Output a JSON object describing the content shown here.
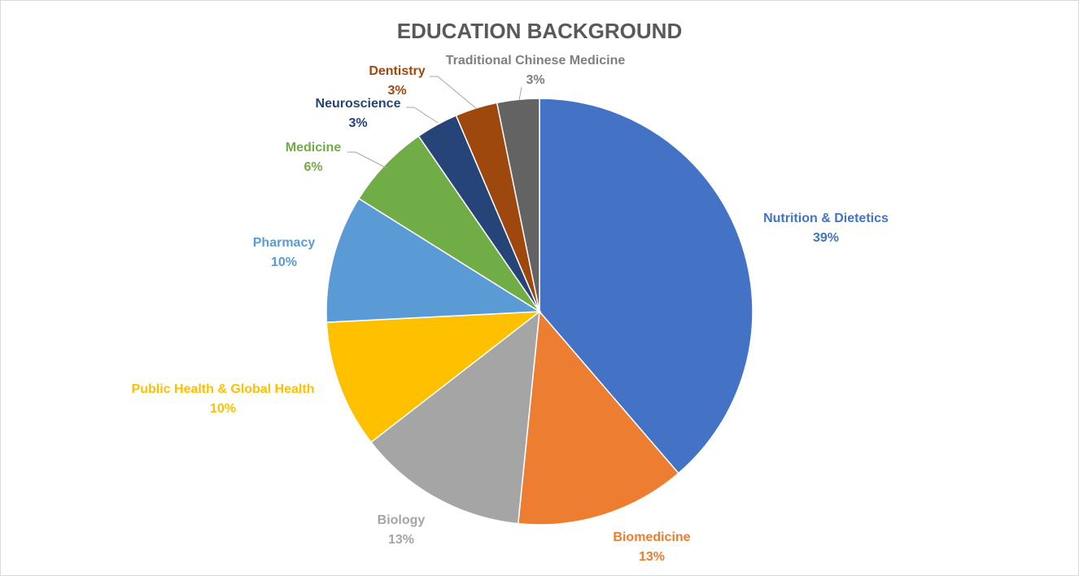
{
  "chart_data": {
    "type": "pie",
    "title": "EDUCATION BACKGROUND",
    "slices": [
      {
        "label": "Nutrition & Dietetics",
        "percent_label": "39%",
        "value": 38.7,
        "color": "#4472C4",
        "label_color": "#4472C4"
      },
      {
        "label": "Biomedicine",
        "percent_label": "13%",
        "value": 12.9,
        "color": "#ED7D31",
        "label_color": "#ED7D31"
      },
      {
        "label": "Biology",
        "percent_label": "13%",
        "value": 12.9,
        "color": "#A5A5A5",
        "label_color": "#A5A5A5"
      },
      {
        "label": "Public Health & Global Health",
        "percent_label": "10%",
        "value": 9.7,
        "color": "#FFC000",
        "label_color": "#FFC000"
      },
      {
        "label": "Pharmacy",
        "percent_label": "10%",
        "value": 9.7,
        "color": "#5B9BD5",
        "label_color": "#5B9BD5"
      },
      {
        "label": "Medicine",
        "percent_label": "6%",
        "value": 6.5,
        "color": "#70AD47",
        "label_color": "#70AD47"
      },
      {
        "label": "Neuroscience",
        "percent_label": "3%",
        "value": 3.2,
        "color": "#264478",
        "label_color": "#264478"
      },
      {
        "label": "Dentistry",
        "percent_label": "3%",
        "value": 3.2,
        "color": "#9E480E",
        "label_color": "#9E480E"
      },
      {
        "label": "Traditional Chinese Medicine",
        "percent_label": "3%",
        "value": 3.2,
        "color": "#636363",
        "label_color": "#7F7F7F"
      }
    ],
    "start_angle": "12 o'clock",
    "direction": "clockwise",
    "legend": "none"
  }
}
